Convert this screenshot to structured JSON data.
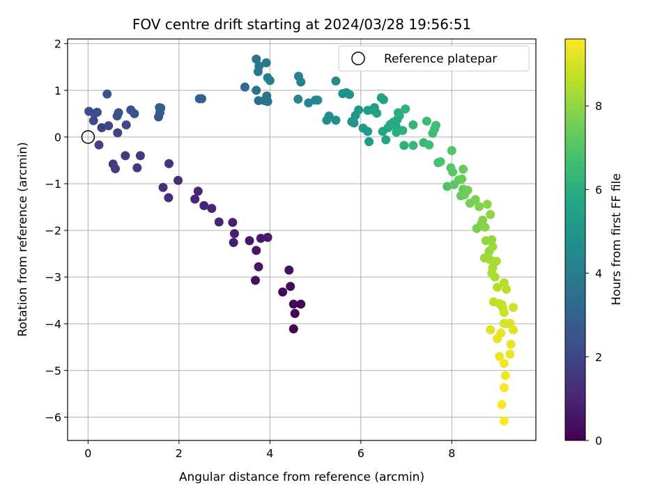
{
  "chart_data": {
    "type": "scatter",
    "title": "FOV centre drift starting at 2024/03/28 19:56:51",
    "xlabel": "Angular distance from reference (arcmin)",
    "ylabel": "Rotation from reference (arcmin)",
    "xlim": [
      -0.45,
      9.85
    ],
    "ylim": [
      -6.5,
      2.1
    ],
    "xticks": [
      0,
      2,
      4,
      6,
      8
    ],
    "yticks": [
      2,
      1,
      0,
      -1,
      -2,
      -3,
      -4,
      -5,
      -6
    ],
    "xtick_labels": [
      "0",
      "2",
      "4",
      "6",
      "8"
    ],
    "ytick_labels": [
      "2",
      "1",
      "0",
      "−1",
      "−2",
      "−3",
      "−4",
      "−5",
      "−6"
    ],
    "grid": true,
    "colormap": "viridis",
    "colorbar": {
      "label": "Hours from first FF file",
      "range": [
        0,
        9.6
      ],
      "ticks": [
        0,
        2,
        4,
        6,
        8
      ],
      "tick_labels": [
        "0",
        "2",
        "4",
        "6",
        "8"
      ]
    },
    "legend": {
      "position": "top-right",
      "entries": [
        {
          "label": "Reference platepar",
          "marker": "open-circle"
        }
      ]
    },
    "reference_point": {
      "x": 0,
      "y": 0
    },
    "points": [
      {
        "x": 4.52,
        "y": -4.11,
        "t": 0.05
      },
      {
        "x": 4.55,
        "y": -3.78,
        "t": 0.1
      },
      {
        "x": 4.68,
        "y": -3.58,
        "t": 0.15
      },
      {
        "x": 4.52,
        "y": -3.58,
        "t": 0.2
      },
      {
        "x": 4.28,
        "y": -3.32,
        "t": 0.25
      },
      {
        "x": 4.45,
        "y": -3.2,
        "t": 0.3
      },
      {
        "x": 4.42,
        "y": -2.85,
        "t": 0.35
      },
      {
        "x": 3.68,
        "y": -3.07,
        "t": 0.45
      },
      {
        "x": 3.75,
        "y": -2.78,
        "t": 0.5
      },
      {
        "x": 3.7,
        "y": -2.43,
        "t": 0.55
      },
      {
        "x": 3.55,
        "y": -2.22,
        "t": 0.6
      },
      {
        "x": 3.8,
        "y": -2.17,
        "t": 0.65
      },
      {
        "x": 3.95,
        "y": -2.15,
        "t": 0.7
      },
      {
        "x": 3.2,
        "y": -2.26,
        "t": 0.75
      },
      {
        "x": 3.22,
        "y": -2.07,
        "t": 0.8
      },
      {
        "x": 3.18,
        "y": -1.83,
        "t": 0.85
      },
      {
        "x": 2.88,
        "y": -1.82,
        "t": 0.9
      },
      {
        "x": 2.72,
        "y": -1.53,
        "t": 0.95
      },
      {
        "x": 2.55,
        "y": -1.47,
        "t": 1.0
      },
      {
        "x": 2.35,
        "y": -1.33,
        "t": 1.05
      },
      {
        "x": 2.42,
        "y": -1.16,
        "t": 1.1
      },
      {
        "x": 1.98,
        "y": -0.93,
        "t": 1.2
      },
      {
        "x": 1.65,
        "y": -1.08,
        "t": 1.25
      },
      {
        "x": 1.77,
        "y": -1.3,
        "t": 1.3
      },
      {
        "x": 1.78,
        "y": -0.57,
        "t": 1.4
      },
      {
        "x": 1.15,
        "y": -0.4,
        "t": 1.5
      },
      {
        "x": 1.08,
        "y": -0.66,
        "t": 1.55
      },
      {
        "x": 0.82,
        "y": -0.4,
        "t": 1.6
      },
      {
        "x": 0.55,
        "y": -0.58,
        "t": 1.65
      },
      {
        "x": 0.6,
        "y": -0.68,
        "t": 1.7
      },
      {
        "x": 0.3,
        "y": 0.2,
        "t": 1.8
      },
      {
        "x": 0.24,
        "y": -0.17,
        "t": 1.85
      },
      {
        "x": 0.65,
        "y": 0.09,
        "t": 1.9
      },
      {
        "x": 0.84,
        "y": 0.26,
        "t": 2.0
      },
      {
        "x": 0.45,
        "y": 0.24,
        "t": 2.05
      },
      {
        "x": 0.12,
        "y": 0.35,
        "t": 2.1
      },
      {
        "x": 0.02,
        "y": 0.55,
        "t": 2.2
      },
      {
        "x": 0.14,
        "y": 0.5,
        "t": 2.25
      },
      {
        "x": 0.2,
        "y": 0.53,
        "t": 2.3
      },
      {
        "x": 0.64,
        "y": 0.45,
        "t": 2.35
      },
      {
        "x": 0.67,
        "y": 0.52,
        "t": 2.4
      },
      {
        "x": 0.94,
        "y": 0.58,
        "t": 2.45
      },
      {
        "x": 1.02,
        "y": 0.5,
        "t": 2.5
      },
      {
        "x": 0.42,
        "y": 0.92,
        "t": 2.55
      },
      {
        "x": 1.55,
        "y": 0.43,
        "t": 2.6
      },
      {
        "x": 1.58,
        "y": 0.52,
        "t": 2.65
      },
      {
        "x": 1.6,
        "y": 0.62,
        "t": 2.7
      },
      {
        "x": 1.57,
        "y": 0.63,
        "t": 2.75
      },
      {
        "x": 2.45,
        "y": 0.82,
        "t": 3.0
      },
      {
        "x": 2.5,
        "y": 0.82,
        "t": 3.05
      },
      {
        "x": 3.45,
        "y": 1.07,
        "t": 3.4
      },
      {
        "x": 3.7,
        "y": 1.0,
        "t": 3.5
      },
      {
        "x": 3.75,
        "y": 0.78,
        "t": 3.55
      },
      {
        "x": 3.88,
        "y": 0.78,
        "t": 3.6
      },
      {
        "x": 3.93,
        "y": 0.88,
        "t": 3.65
      },
      {
        "x": 3.95,
        "y": 0.76,
        "t": 3.7
      },
      {
        "x": 3.7,
        "y": 1.67,
        "t": 3.75
      },
      {
        "x": 3.92,
        "y": 1.59,
        "t": 3.8
      },
      {
        "x": 3.76,
        "y": 1.52,
        "t": 3.85
      },
      {
        "x": 3.74,
        "y": 1.4,
        "t": 3.9
      },
      {
        "x": 3.95,
        "y": 1.27,
        "t": 3.95
      },
      {
        "x": 4.0,
        "y": 1.21,
        "t": 4.0
      },
      {
        "x": 4.63,
        "y": 1.3,
        "t": 4.2
      },
      {
        "x": 4.68,
        "y": 1.18,
        "t": 4.25
      },
      {
        "x": 4.62,
        "y": 0.81,
        "t": 4.3
      },
      {
        "x": 4.85,
        "y": 0.73,
        "t": 4.4
      },
      {
        "x": 5.0,
        "y": 0.79,
        "t": 4.45
      },
      {
        "x": 5.05,
        "y": 0.79,
        "t": 4.5
      },
      {
        "x": 5.45,
        "y": 1.2,
        "t": 4.6
      },
      {
        "x": 5.25,
        "y": 0.36,
        "t": 4.65
      },
      {
        "x": 5.3,
        "y": 0.45,
        "t": 4.7
      },
      {
        "x": 5.45,
        "y": 0.36,
        "t": 4.75
      },
      {
        "x": 5.6,
        "y": 0.93,
        "t": 4.8
      },
      {
        "x": 5.68,
        "y": 0.95,
        "t": 4.85
      },
      {
        "x": 5.75,
        "y": 0.91,
        "t": 4.9
      },
      {
        "x": 5.8,
        "y": 0.33,
        "t": 4.95
      },
      {
        "x": 5.88,
        "y": 0.46,
        "t": 5.0
      },
      {
        "x": 5.95,
        "y": 0.58,
        "t": 5.05
      },
      {
        "x": 5.85,
        "y": 0.3,
        "t": 5.1
      },
      {
        "x": 6.05,
        "y": 0.19,
        "t": 5.15
      },
      {
        "x": 6.15,
        "y": 0.12,
        "t": 5.2
      },
      {
        "x": 6.18,
        "y": -0.1,
        "t": 5.25
      },
      {
        "x": 6.15,
        "y": 0.57,
        "t": 5.3
      },
      {
        "x": 6.25,
        "y": 0.58,
        "t": 5.35
      },
      {
        "x": 6.3,
        "y": 0.63,
        "t": 5.4
      },
      {
        "x": 6.35,
        "y": 0.51,
        "t": 5.45
      },
      {
        "x": 6.45,
        "y": 0.84,
        "t": 5.5
      },
      {
        "x": 6.5,
        "y": 0.8,
        "t": 5.55
      },
      {
        "x": 6.48,
        "y": 0.12,
        "t": 5.6
      },
      {
        "x": 6.55,
        "y": -0.06,
        "t": 5.65
      },
      {
        "x": 6.6,
        "y": 0.2,
        "t": 5.7
      },
      {
        "x": 6.65,
        "y": 0.27,
        "t": 5.75
      },
      {
        "x": 6.72,
        "y": 0.32,
        "t": 5.8
      },
      {
        "x": 6.78,
        "y": 0.22,
        "t": 5.85
      },
      {
        "x": 6.8,
        "y": 0.37,
        "t": 5.9
      },
      {
        "x": 6.85,
        "y": 0.46,
        "t": 5.95
      },
      {
        "x": 6.82,
        "y": 0.52,
        "t": 6.0
      },
      {
        "x": 6.78,
        "y": 0.1,
        "t": 6.05
      },
      {
        "x": 6.92,
        "y": 0.14,
        "t": 6.1
      },
      {
        "x": 6.95,
        "y": -0.18,
        "t": 6.15
      },
      {
        "x": 6.98,
        "y": 0.6,
        "t": 6.2
      },
      {
        "x": 7.15,
        "y": 0.26,
        "t": 6.3
      },
      {
        "x": 7.15,
        "y": -0.18,
        "t": 6.35
      },
      {
        "x": 7.38,
        "y": -0.12,
        "t": 6.45
      },
      {
        "x": 7.45,
        "y": 0.34,
        "t": 6.5
      },
      {
        "x": 7.5,
        "y": -0.17,
        "t": 6.55
      },
      {
        "x": 7.58,
        "y": 0.08,
        "t": 6.6
      },
      {
        "x": 7.62,
        "y": 0.17,
        "t": 6.65
      },
      {
        "x": 7.65,
        "y": 0.25,
        "t": 6.7
      },
      {
        "x": 7.7,
        "y": -0.55,
        "t": 6.75
      },
      {
        "x": 7.75,
        "y": -0.53,
        "t": 6.8
      },
      {
        "x": 7.9,
        "y": -1.06,
        "t": 6.9
      },
      {
        "x": 8.0,
        "y": -0.29,
        "t": 7.0
      },
      {
        "x": 7.98,
        "y": -0.66,
        "t": 7.05
      },
      {
        "x": 8.02,
        "y": -0.75,
        "t": 7.1
      },
      {
        "x": 8.05,
        "y": -1.02,
        "t": 7.15
      },
      {
        "x": 8.15,
        "y": -0.92,
        "t": 7.2
      },
      {
        "x": 8.2,
        "y": -1.26,
        "t": 7.25
      },
      {
        "x": 8.25,
        "y": -1.12,
        "t": 7.3
      },
      {
        "x": 8.25,
        "y": -0.69,
        "t": 7.35
      },
      {
        "x": 8.22,
        "y": -0.9,
        "t": 7.4
      },
      {
        "x": 8.28,
        "y": -1.24,
        "t": 7.45
      },
      {
        "x": 8.35,
        "y": -1.14,
        "t": 7.5
      },
      {
        "x": 8.4,
        "y": -1.42,
        "t": 7.55
      },
      {
        "x": 8.52,
        "y": -1.34,
        "t": 7.6
      },
      {
        "x": 8.55,
        "y": -1.96,
        "t": 7.65
      },
      {
        "x": 8.6,
        "y": -1.49,
        "t": 7.7
      },
      {
        "x": 8.65,
        "y": -1.86,
        "t": 7.75
      },
      {
        "x": 8.68,
        "y": -1.78,
        "t": 7.8
      },
      {
        "x": 8.73,
        "y": -1.93,
        "t": 7.85
      },
      {
        "x": 8.78,
        "y": -1.44,
        "t": 7.9
      },
      {
        "x": 8.85,
        "y": -1.66,
        "t": 7.95
      },
      {
        "x": 8.75,
        "y": -2.22,
        "t": 8.0
      },
      {
        "x": 8.88,
        "y": -2.2,
        "t": 8.05
      },
      {
        "x": 8.82,
        "y": -2.45,
        "t": 8.1
      },
      {
        "x": 8.9,
        "y": -2.35,
        "t": 8.15
      },
      {
        "x": 8.72,
        "y": -2.59,
        "t": 8.2
      },
      {
        "x": 8.83,
        "y": -2.62,
        "t": 8.25
      },
      {
        "x": 8.9,
        "y": -2.8,
        "t": 8.3
      },
      {
        "x": 8.98,
        "y": -2.66,
        "t": 8.35
      },
      {
        "x": 8.88,
        "y": -2.92,
        "t": 8.4
      },
      {
        "x": 8.95,
        "y": -3.0,
        "t": 8.45
      },
      {
        "x": 9.0,
        "y": -3.22,
        "t": 8.5
      },
      {
        "x": 9.15,
        "y": -3.12,
        "t": 8.55
      },
      {
        "x": 9.2,
        "y": -3.26,
        "t": 8.6
      },
      {
        "x": 8.92,
        "y": -3.53,
        "t": 8.65
      },
      {
        "x": 9.05,
        "y": -3.57,
        "t": 8.7
      },
      {
        "x": 9.1,
        "y": -3.59,
        "t": 8.75
      },
      {
        "x": 9.12,
        "y": -3.66,
        "t": 8.8
      },
      {
        "x": 9.15,
        "y": -3.76,
        "t": 8.85
      },
      {
        "x": 9.35,
        "y": -3.65,
        "t": 8.9
      },
      {
        "x": 9.15,
        "y": -3.99,
        "t": 8.95
      },
      {
        "x": 9.2,
        "y": -4.0,
        "t": 9.0
      },
      {
        "x": 9.28,
        "y": -3.99,
        "t": 9.05
      },
      {
        "x": 8.85,
        "y": -4.13,
        "t": 9.1
      },
      {
        "x": 9.35,
        "y": -4.13,
        "t": 9.15
      },
      {
        "x": 9.08,
        "y": -4.2,
        "t": 9.2
      },
      {
        "x": 9.0,
        "y": -4.32,
        "t": 9.25
      },
      {
        "x": 9.3,
        "y": -4.44,
        "t": 9.3
      },
      {
        "x": 9.28,
        "y": -4.65,
        "t": 9.32
      },
      {
        "x": 9.05,
        "y": -4.7,
        "t": 9.35
      },
      {
        "x": 9.15,
        "y": -4.85,
        "t": 9.4
      },
      {
        "x": 9.18,
        "y": -5.11,
        "t": 9.45
      },
      {
        "x": 9.15,
        "y": -5.37,
        "t": 9.5
      },
      {
        "x": 9.1,
        "y": -5.73,
        "t": 9.55
      },
      {
        "x": 9.15,
        "y": -6.08,
        "t": 9.6
      }
    ]
  }
}
